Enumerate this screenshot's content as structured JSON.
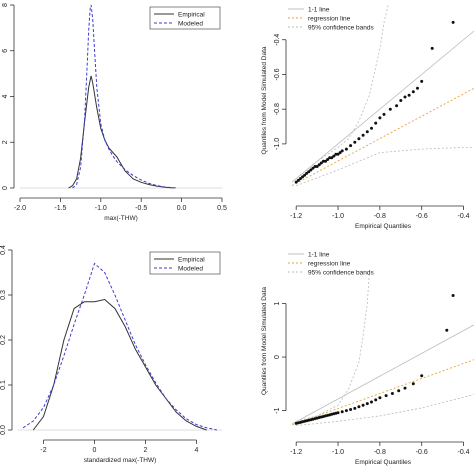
{
  "chart_data": [
    {
      "type": "line",
      "xlabel": "max(-THW)",
      "ylabel": "",
      "xlim": [
        -2.0,
        0.5
      ],
      "ylim": [
        0,
        8
      ],
      "x_ticks": [
        "-2.0",
        "-1.5",
        "-1.0",
        "-0.5",
        "0.0",
        "0.5"
      ],
      "x_tick_values": [
        -2.0,
        -1.5,
        -1.0,
        -0.5,
        0.0,
        0.5
      ],
      "y_ticks": [
        "0",
        "2",
        "4",
        "6",
        "8"
      ],
      "y_tick_values": [
        0,
        2,
        4,
        6,
        8
      ],
      "legend": {
        "position": "top-right",
        "entries": [
          "Empirical",
          "Modeled"
        ]
      },
      "series": [
        {
          "name": "Empirical",
          "style": "solid",
          "color": "#333333",
          "x": [
            -1.4,
            -1.35,
            -1.3,
            -1.25,
            -1.2,
            -1.15,
            -1.12,
            -1.1,
            -1.05,
            -1.0,
            -0.95,
            -0.9,
            -0.85,
            -0.8,
            -0.75,
            -0.7,
            -0.6,
            -0.5,
            -0.4,
            -0.3,
            -0.2,
            -0.1
          ],
          "y": [
            0,
            0.1,
            0.4,
            1.3,
            2.9,
            4.4,
            4.9,
            4.6,
            3.5,
            2.6,
            2.1,
            1.75,
            1.55,
            1.35,
            1.05,
            0.75,
            0.4,
            0.25,
            0.15,
            0.08,
            0.03,
            0
          ]
        },
        {
          "name": "Modeled",
          "style": "dashed",
          "color": "#3b3bd6",
          "x": [
            -1.35,
            -1.3,
            -1.25,
            -1.2,
            -1.17,
            -1.15,
            -1.13,
            -1.12,
            -1.1,
            -1.08,
            -1.05,
            -1.0,
            -0.95,
            -0.9,
            -0.85,
            -0.8,
            -0.7,
            -0.6,
            -0.5,
            -0.4,
            -0.3,
            -0.2,
            -0.05
          ],
          "y": [
            0,
            0.15,
            0.9,
            3.0,
            5.3,
            6.9,
            7.9,
            8.0,
            7.4,
            6.2,
            4.4,
            2.8,
            2.1,
            1.7,
            1.4,
            1.15,
            0.8,
            0.55,
            0.35,
            0.2,
            0.1,
            0.04,
            0
          ]
        }
      ]
    },
    {
      "type": "scatter",
      "xlabel": "Empirical Quantiles",
      "ylabel": "Quantiles from Model Simulated Data",
      "xlim": [
        -1.22,
        -0.35
      ],
      "ylim": [
        -1.3,
        -0.2
      ],
      "x_ticks": [
        "-1.2",
        "-1.0",
        "-0.8",
        "-0.6",
        "-0.4"
      ],
      "x_tick_values": [
        -1.2,
        -1.0,
        -0.8,
        -0.6,
        -0.4
      ],
      "y_ticks": [
        "-1.0",
        "-0.8",
        "-0.6",
        "-0.4"
      ],
      "y_tick_values": [
        -1.0,
        -0.8,
        -0.6,
        -0.4
      ],
      "legend": {
        "position": "top-left",
        "entries": [
          "1-1 line",
          "regression line",
          "95% confidence bands"
        ]
      },
      "lines": {
        "one_to_one": {
          "x": [
            -1.22,
            -0.35
          ],
          "y": [
            -1.22,
            -0.35
          ],
          "color": "#bbbbbb"
        },
        "regression": {
          "x": [
            -1.22,
            -0.35
          ],
          "y": [
            -1.24,
            -0.68
          ],
          "color": "#e8a33a"
        },
        "upper_band": {
          "x": [
            -1.2,
            -1.1,
            -1.0,
            -0.95,
            -0.9,
            -0.85,
            -0.8,
            -0.78,
            -0.76
          ],
          "y": [
            -1.2,
            -1.1,
            -1.02,
            -0.97,
            -0.87,
            -0.72,
            -0.45,
            -0.3,
            -0.2
          ],
          "color": "#bbbbbb"
        },
        "lower_band": {
          "x": [
            -1.2,
            -1.0,
            -0.8,
            -0.6,
            -0.4,
            -0.35
          ],
          "y": [
            -1.24,
            -1.15,
            -1.05,
            -1.03,
            -1.02,
            -1.02
          ],
          "color": "#bbbbbb"
        }
      },
      "points": {
        "x": [
          -1.2,
          -1.19,
          -1.18,
          -1.17,
          -1.16,
          -1.15,
          -1.14,
          -1.13,
          -1.12,
          -1.11,
          -1.1,
          -1.09,
          -1.08,
          -1.07,
          -1.06,
          -1.05,
          -1.04,
          -1.03,
          -1.02,
          -1.01,
          -1.0,
          -0.99,
          -0.98,
          -0.96,
          -0.94,
          -0.92,
          -0.9,
          -0.88,
          -0.86,
          -0.84,
          -0.82,
          -0.8,
          -0.78,
          -0.75,
          -0.72,
          -0.7,
          -0.68,
          -0.66,
          -0.64,
          -0.62,
          -0.6,
          -0.55,
          -0.45
        ],
        "y": [
          -1.22,
          -1.21,
          -1.2,
          -1.19,
          -1.18,
          -1.17,
          -1.16,
          -1.15,
          -1.14,
          -1.13,
          -1.13,
          -1.12,
          -1.11,
          -1.1,
          -1.1,
          -1.09,
          -1.08,
          -1.08,
          -1.07,
          -1.06,
          -1.06,
          -1.05,
          -1.04,
          -1.03,
          -1.01,
          -0.99,
          -0.97,
          -0.95,
          -0.93,
          -0.91,
          -0.88,
          -0.85,
          -0.83,
          -0.8,
          -0.78,
          -0.75,
          -0.73,
          -0.72,
          -0.7,
          -0.68,
          -0.64,
          -0.45,
          -0.3
        ]
      }
    },
    {
      "type": "line",
      "xlabel": "standardized max(-THW)",
      "ylabel": "",
      "xlim": [
        -3.0,
        5.0
      ],
      "ylim": [
        0,
        0.4
      ],
      "x_ticks": [
        "-2",
        "0",
        "2",
        "4"
      ],
      "x_tick_values": [
        -2,
        0,
        2,
        4
      ],
      "y_ticks": [
        "0.0",
        "0.1",
        "0.2",
        "0.3",
        "0.4"
      ],
      "y_tick_values": [
        0.0,
        0.1,
        0.2,
        0.3,
        0.4
      ],
      "legend": {
        "position": "top-right",
        "entries": [
          "Empirical",
          "Modeled"
        ]
      },
      "series": [
        {
          "name": "Empirical",
          "style": "solid",
          "color": "#333333",
          "x": [
            -2.4,
            -2.0,
            -1.6,
            -1.2,
            -0.8,
            -0.4,
            0.0,
            0.4,
            0.8,
            1.2,
            1.6,
            2.0,
            2.4,
            2.8,
            3.2,
            3.6,
            4.0,
            4.4
          ],
          "y": [
            0.0,
            0.03,
            0.1,
            0.2,
            0.27,
            0.285,
            0.285,
            0.29,
            0.27,
            0.23,
            0.18,
            0.14,
            0.1,
            0.07,
            0.04,
            0.02,
            0.008,
            0.0
          ]
        },
        {
          "name": "Modeled",
          "style": "dashed",
          "color": "#3b3bd6",
          "x": [
            -2.8,
            -2.4,
            -2.0,
            -1.6,
            -1.2,
            -0.8,
            -0.4,
            0.0,
            0.4,
            0.8,
            1.2,
            1.6,
            2.0,
            2.4,
            2.8,
            3.2,
            3.6,
            4.0,
            4.4,
            4.8
          ],
          "y": [
            0.005,
            0.02,
            0.05,
            0.1,
            0.165,
            0.235,
            0.3,
            0.37,
            0.35,
            0.3,
            0.245,
            0.19,
            0.145,
            0.105,
            0.07,
            0.045,
            0.025,
            0.012,
            0.005,
            0.0
          ]
        }
      ]
    },
    {
      "type": "scatter",
      "xlabel": "Empirical Quantiles",
      "ylabel": "Quantiles from Model Simulated Data",
      "xlim": [
        -1.22,
        -0.35
      ],
      "ylim": [
        -1.4,
        2.0
      ],
      "x_ticks": [
        "-1.2",
        "-1.0",
        "-0.8",
        "-0.6",
        "-0.4"
      ],
      "x_tick_values": [
        -1.2,
        -1.0,
        -0.8,
        -0.6,
        -0.4
      ],
      "y_ticks": [
        "-1",
        "0",
        "1"
      ],
      "y_tick_values": [
        -1,
        0,
        1
      ],
      "legend": {
        "position": "top-left",
        "entries": [
          "1-1 line",
          "regression line",
          "95% confidence bands"
        ]
      },
      "lines": {
        "one_to_one": {
          "x": [
            -1.22,
            -0.35
          ],
          "y": [
            -1.25,
            0.6
          ],
          "color": "#bbbbbb"
        },
        "regression": {
          "x": [
            -1.22,
            -0.35
          ],
          "y": [
            -1.27,
            -0.05
          ],
          "color": "#e8a33a"
        },
        "upper_band": {
          "x": [
            -1.2,
            -1.1,
            -1.0,
            -0.95,
            -0.9,
            -0.88,
            -0.86,
            -0.85
          ],
          "y": [
            -1.2,
            -1.1,
            -0.9,
            -0.6,
            -0.1,
            0.4,
            1.0,
            1.6
          ],
          "color": "#bbbbbb"
        },
        "lower_band": {
          "x": [
            -1.2,
            -1.0,
            -0.8,
            -0.6,
            -0.4,
            -0.35
          ],
          "y": [
            -1.28,
            -1.2,
            -1.1,
            -0.95,
            -0.75,
            -0.7
          ],
          "color": "#bbbbbb"
        }
      },
      "points": {
        "x": [
          -1.2,
          -1.19,
          -1.18,
          -1.17,
          -1.16,
          -1.15,
          -1.14,
          -1.13,
          -1.12,
          -1.11,
          -1.1,
          -1.09,
          -1.08,
          -1.07,
          -1.06,
          -1.05,
          -1.04,
          -1.03,
          -1.02,
          -1.01,
          -1.0,
          -0.98,
          -0.96,
          -0.94,
          -0.92,
          -0.9,
          -0.88,
          -0.86,
          -0.84,
          -0.82,
          -0.8,
          -0.77,
          -0.74,
          -0.71,
          -0.68,
          -0.64,
          -0.6,
          -0.48,
          -0.45
        ],
        "y": [
          -1.24,
          -1.23,
          -1.22,
          -1.21,
          -1.2,
          -1.19,
          -1.18,
          -1.17,
          -1.16,
          -1.15,
          -1.14,
          -1.13,
          -1.12,
          -1.11,
          -1.1,
          -1.09,
          -1.08,
          -1.07,
          -1.06,
          -1.05,
          -1.04,
          -1.02,
          -1.0,
          -0.98,
          -0.96,
          -0.93,
          -0.9,
          -0.87,
          -0.84,
          -0.8,
          -0.76,
          -0.72,
          -0.68,
          -0.63,
          -0.58,
          -0.5,
          -0.35,
          0.5,
          1.15
        ]
      }
    }
  ]
}
